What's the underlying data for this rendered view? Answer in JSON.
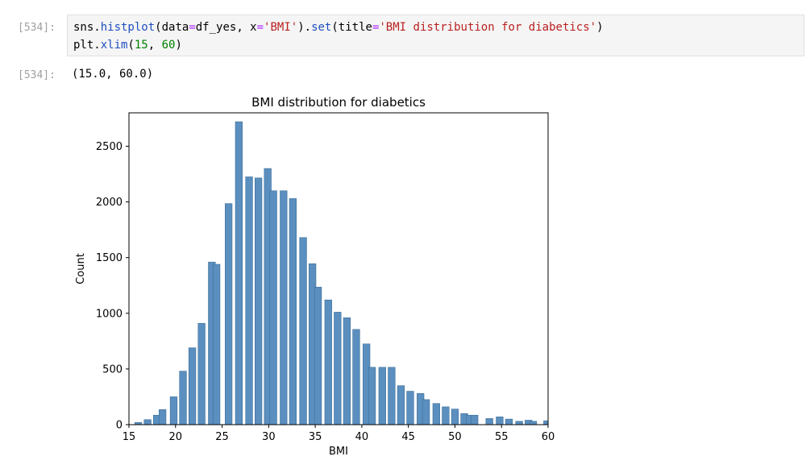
{
  "cells": {
    "input_prompt": "[534]:",
    "output_prompt": "[534]:",
    "code_line_1": {
      "p1": "sns.",
      "p2": "histplot",
      "p3": "(data",
      "p4": "=",
      "p5": "df_yes, x",
      "p6": "=",
      "p7": "'BMI'",
      "p8": ").",
      "p9": "set",
      "p10": "(title",
      "p11": "=",
      "p12": "'BMI distribution for diabetics'",
      "p13": ")"
    },
    "code_line_2": {
      "p1": "plt.",
      "p2": "xlim",
      "p3": "(",
      "p4": "15",
      "p5": ", ",
      "p6": "60",
      "p7": ")"
    },
    "output_text": "(15.0, 60.0)"
  },
  "colors": {
    "bar_fill": "#5a8fbf",
    "bar_edge": "#3f6f99"
  },
  "chart_data": {
    "type": "bar",
    "title": "BMI distribution for diabetics",
    "xlabel": "BMI",
    "ylabel": "Count",
    "xlim": [
      15,
      60
    ],
    "ylim": [
      0,
      2800
    ],
    "xticks": [
      "15",
      "20",
      "25",
      "30",
      "35",
      "40",
      "45",
      "50",
      "55",
      "60"
    ],
    "yticks": [
      "0",
      "500",
      "1000",
      "1500",
      "2000",
      "2500"
    ],
    "bin_width": 0.75,
    "x": [
      16,
      17,
      18,
      18.6,
      19.8,
      20.8,
      21.8,
      22.8,
      23.9,
      24.4,
      25.7,
      26.8,
      27.9,
      28.9,
      29.9,
      30.5,
      31.6,
      32.6,
      33.7,
      34.7,
      35.3,
      36.4,
      37.4,
      38.4,
      39.4,
      40.5,
      41.1,
      42.2,
      43.2,
      44.2,
      45.2,
      46.3,
      46.9,
      48,
      49,
      50,
      51,
      51.6,
      52.1,
      53.7,
      54.8,
      55.8,
      56.9,
      57.9,
      58.4,
      59.9
    ],
    "values": [
      20,
      45,
      85,
      135,
      250,
      480,
      690,
      910,
      1460,
      1440,
      1985,
      2720,
      2225,
      2215,
      2300,
      2100,
      2100,
      2030,
      1680,
      1445,
      1235,
      1120,
      1010,
      960,
      855,
      725,
      515,
      515,
      515,
      350,
      300,
      280,
      225,
      190,
      160,
      140,
      100,
      85,
      85,
      55,
      70,
      50,
      30,
      40,
      30,
      35
    ]
  }
}
